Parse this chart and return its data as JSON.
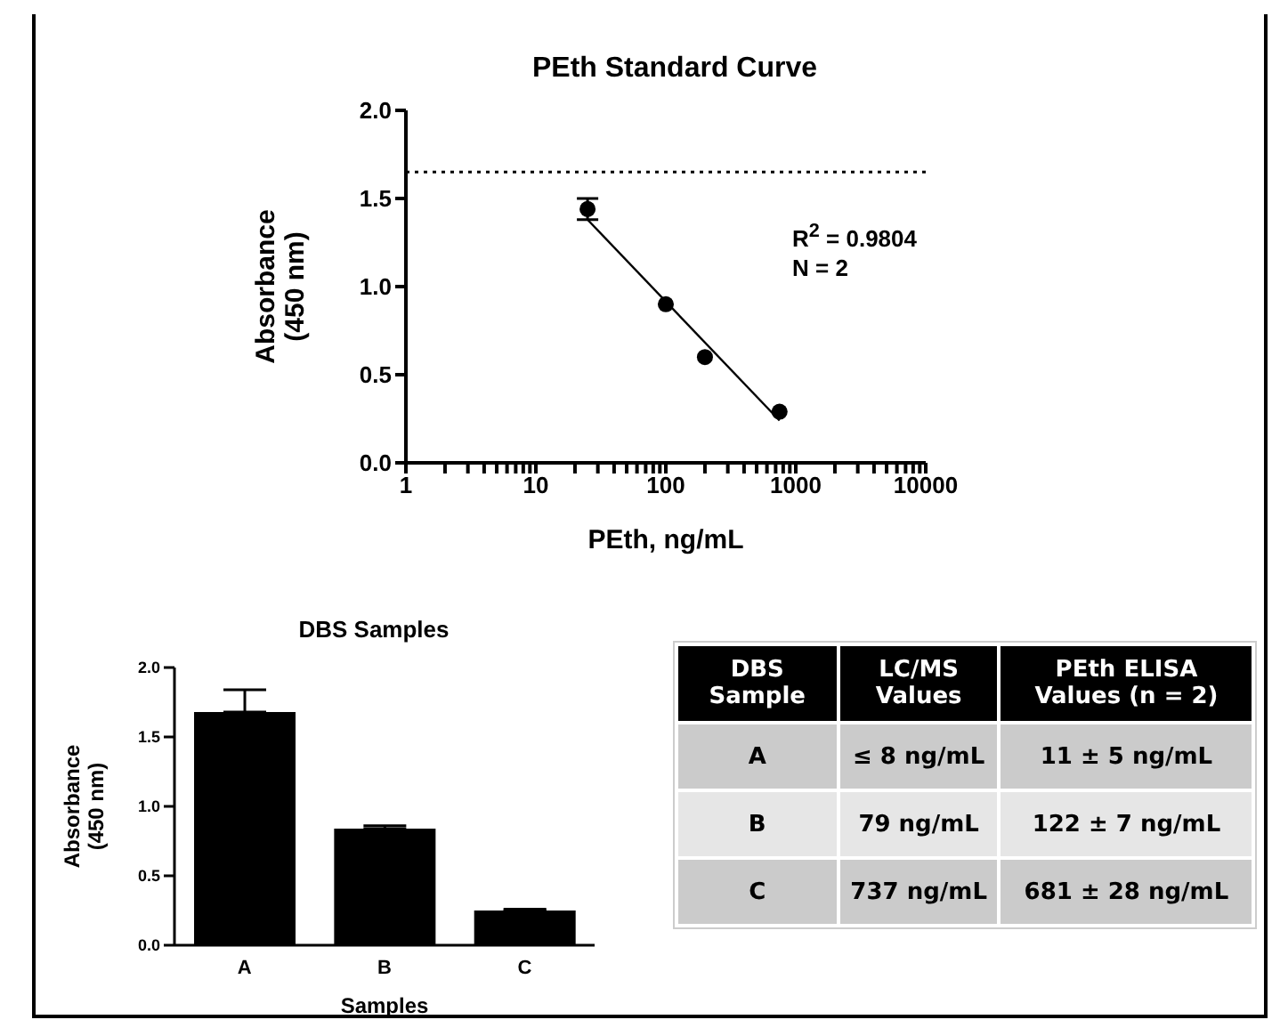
{
  "chart_data": [
    {
      "type": "scatter",
      "title": "PEth Standard Curve",
      "xlabel": "PEth, ng/mL",
      "ylabel": "Absorbance\n(450 nm)",
      "log": "x",
      "xlim": [
        1,
        10000
      ],
      "xticks": [
        1,
        {
          "value": 2,
          "label": null
        },
        {
          "value": 3,
          "label": null
        },
        {
          "value": 4,
          "label": null
        },
        {
          "value": 5,
          "label": null
        },
        {
          "value": 6,
          "label": null
        },
        {
          "value": 7,
          "label": null
        },
        {
          "value": 8,
          "label": null
        },
        {
          "value": 9,
          "label": null
        },
        10,
        {
          "value": 20,
          "label": null
        },
        {
          "value": 30,
          "label": null
        },
        {
          "value": 40,
          "label": null
        },
        {
          "value": 50,
          "label": null
        },
        {
          "value": 60,
          "label": null
        },
        {
          "value": 70,
          "label": null
        },
        {
          "value": 80,
          "label": null
        },
        {
          "value": 90,
          "label": null
        },
        100,
        {
          "value": 200,
          "label": null
        },
        {
          "value": 300,
          "label": null
        },
        {
          "value": 400,
          "label": null
        },
        {
          "value": 500,
          "label": null
        },
        {
          "value": 600,
          "label": null
        },
        {
          "value": 700,
          "label": null
        },
        {
          "value": 800,
          "label": null
        },
        {
          "value": 900,
          "label": null
        },
        1000,
        {
          "value": 2000,
          "label": null
        },
        {
          "value": 3000,
          "label": null
        },
        {
          "value": 4000,
          "label": null
        },
        {
          "value": 5000,
          "label": null
        },
        {
          "value": 6000,
          "label": null
        },
        {
          "value": 7000,
          "label": null
        },
        {
          "value": 8000,
          "label": null
        },
        {
          "value": 9000,
          "label": null
        },
        10000
      ],
      "ylim": [
        0,
        2
      ],
      "yticks": [
        {
          "value": 0,
          "label": "0.0"
        },
        {
          "value": 0.5,
          "label": "0.5"
        },
        {
          "value": 1,
          "label": "1.0"
        },
        {
          "value": 1.5,
          "label": "1.5"
        },
        {
          "value": 2,
          "label": "2.0"
        }
      ],
      "grid": false,
      "series": [
        {
          "type": "scatter",
          "marker": "circle",
          "color": "#000000",
          "x": [
            25,
            100,
            200,
            750
          ],
          "values": [
            1.44,
            0.9,
            0.6,
            0.29
          ],
          "errors": [
            0.06,
            null,
            null,
            null
          ]
        },
        {
          "type": "line",
          "marker": "none",
          "color": "#000000",
          "x": [
            25,
            750
          ],
          "values": [
            1.38,
            0.24
          ]
        }
      ],
      "ref_lines": [
        {
          "axis": "y",
          "value": 1.65,
          "line_style": "dotted",
          "color": "#000000"
        }
      ],
      "annotations": [
        "R$^{2}$ = 0.9804",
        "N = 2"
      ]
    },
    {
      "type": "bar",
      "title": "DBS Samples",
      "xlabel": "Samples",
      "ylabel": "Absorbance\n(450 nm)",
      "categories": [
        "A",
        "B",
        "C"
      ],
      "values": [
        1.68,
        0.84,
        0.25
      ],
      "errors": [
        [
          1.68,
          1.84
        ],
        [
          0.84,
          0.86
        ],
        [
          0.25,
          0.26
        ]
      ],
      "color": "#000000",
      "ylim": [
        0,
        2
      ],
      "yticks": [
        {
          "value": 0,
          "label": "0.0"
        },
        0.5,
        {
          "value": 1,
          "label": "1.0"
        },
        1.5,
        {
          "value": 2,
          "label": "2.0"
        }
      ],
      "grid": false
    },
    {
      "type": "other",
      "categories": [
        "DBS Sample",
        "LC/MS Values",
        "PEth ELISA Values (n = 2)"
      ],
      "annotations": [
        "A",
        "≤ 8 ng/mL",
        "11 ± 5 ng/mL",
        "B",
        "79 ng/mL",
        "122 ± 7 ng/mL",
        "C",
        "737 ng/mL",
        "681 ± 28 ng/mL"
      ]
    }
  ]
}
